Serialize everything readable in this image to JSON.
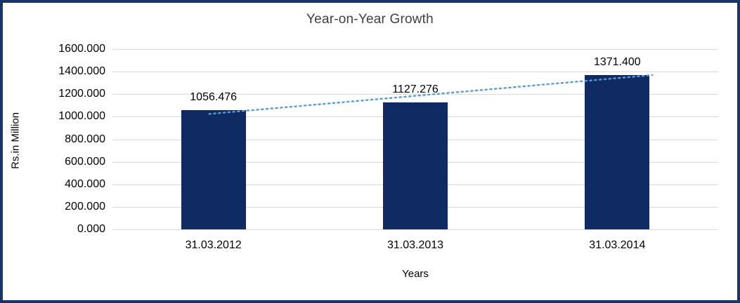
{
  "chart_data": {
    "type": "bar",
    "title": "Year-on-Year Growth",
    "xlabel": "Years",
    "ylabel": "Rs.in Million",
    "categories": [
      "31.03.2012",
      "31.03.2013",
      "31.03.2014"
    ],
    "values": [
      1056.476,
      1127.276,
      1371.4
    ],
    "value_labels": [
      "1056.476",
      "1127.276",
      "1371.400"
    ],
    "ylim": [
      0,
      1600
    ],
    "ytick_step": 200,
    "ytick_labels": [
      "0.000",
      "200.000",
      "400.000",
      "600.000",
      "800.000",
      "1000.000",
      "1200.000",
      "1400.000",
      "1600.000"
    ],
    "grid": "horizontal",
    "legend": "none",
    "trendline": true,
    "colors": {
      "bar": "#102a63",
      "trendline": "#5b9bd5",
      "gridline": "#d9d9d9",
      "frame_border": "#16356b",
      "title_text": "#404040",
      "text": "#000000"
    }
  }
}
